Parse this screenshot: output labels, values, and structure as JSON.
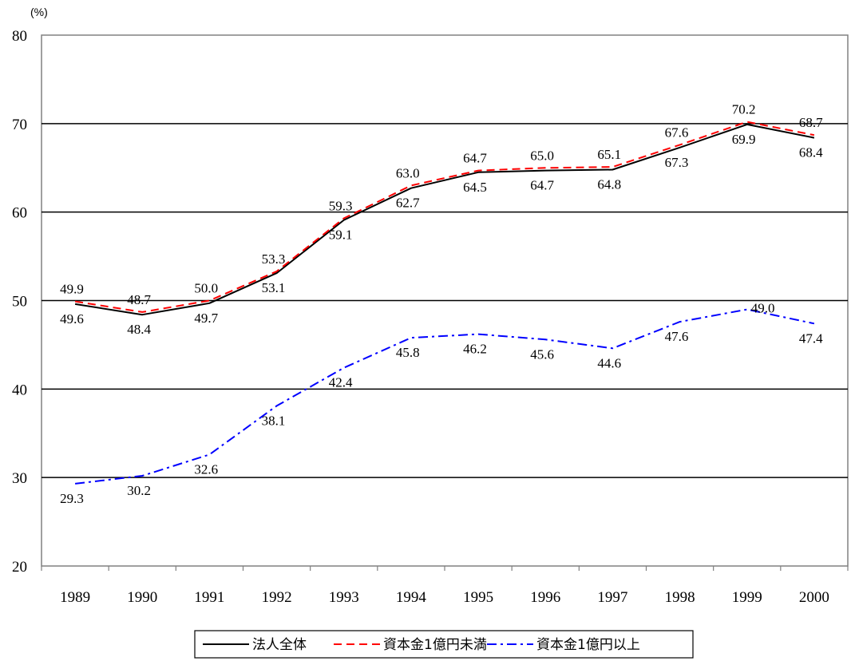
{
  "chart_data": {
    "type": "line",
    "ylabel": "(%)",
    "ylim": [
      20,
      80
    ],
    "yticks": [
      20,
      30,
      40,
      50,
      60,
      70,
      80
    ],
    "categories": [
      "1989",
      "1990",
      "1991",
      "1992",
      "1993",
      "1994",
      "1995",
      "1996",
      "1997",
      "1998",
      "1999",
      "2000"
    ],
    "grid": true,
    "legend_position": "bottom",
    "series": [
      {
        "name": "法人全体",
        "color": "#000000",
        "dash": "solid",
        "values": [
          49.6,
          48.4,
          49.7,
          53.1,
          59.1,
          62.7,
          64.5,
          64.7,
          64.8,
          67.3,
          69.9,
          68.4
        ],
        "label_pos": [
          "below",
          "below",
          "below",
          "below",
          "below",
          "below",
          "below",
          "below",
          "below",
          "below",
          "below",
          "below"
        ]
      },
      {
        "name": "資本金1億円未満",
        "color": "#ff0000",
        "dash": "dashed",
        "values": [
          49.9,
          48.7,
          50.0,
          53.3,
          59.3,
          63.0,
          64.7,
          65.0,
          65.1,
          67.6,
          70.2,
          68.7
        ],
        "label_pos": [
          "above",
          "above",
          "above",
          "above",
          "above",
          "above",
          "above",
          "above",
          "above",
          "above",
          "above",
          "above"
        ]
      },
      {
        "name": "資本金1億円以上",
        "color": "#0000ff",
        "dash": "dashdot",
        "values": [
          29.3,
          30.2,
          32.6,
          38.1,
          42.4,
          45.8,
          46.2,
          45.6,
          44.6,
          47.6,
          49.0,
          47.4
        ],
        "label_pos": [
          "below",
          "below",
          "below",
          "below",
          "below",
          "below",
          "below",
          "below",
          "below",
          "below",
          "right",
          "below"
        ]
      }
    ]
  }
}
